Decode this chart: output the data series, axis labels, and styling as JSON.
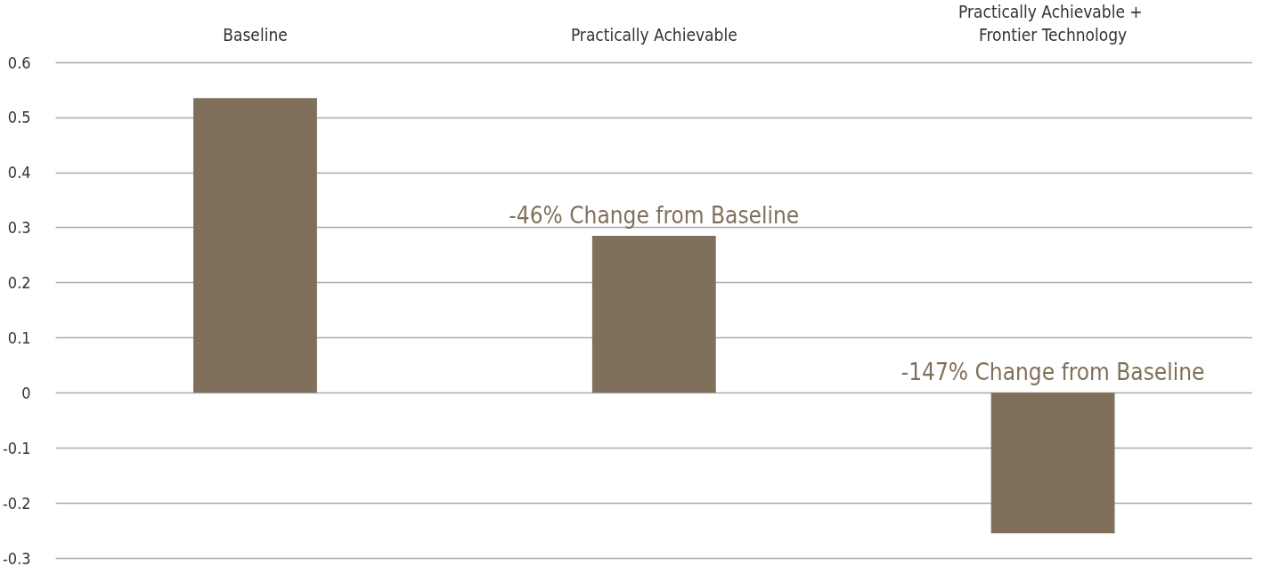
{
  "chart_data": {
    "type": "bar",
    "categories": [
      "Baseline",
      "Practically Achievable",
      "Practically Achievable + Frontier Technology"
    ],
    "values": [
      0.535,
      0.285,
      -0.255
    ],
    "color": "#80705b",
    "ylim": [
      -0.3,
      0.6
    ],
    "yticks": [
      -0.3,
      -0.2,
      -0.1,
      0,
      0.1,
      0.2,
      0.3,
      0.4,
      0.5,
      0.6
    ],
    "grid": "y",
    "annotations": [
      {
        "text": "-46% Change from Baseline",
        "x": "Practically Achievable",
        "y": 0.285
      },
      {
        "text": "-147% Change from Baseline",
        "x": "Practically Achievable + Frontier Technology",
        "y": 0
      }
    ]
  }
}
